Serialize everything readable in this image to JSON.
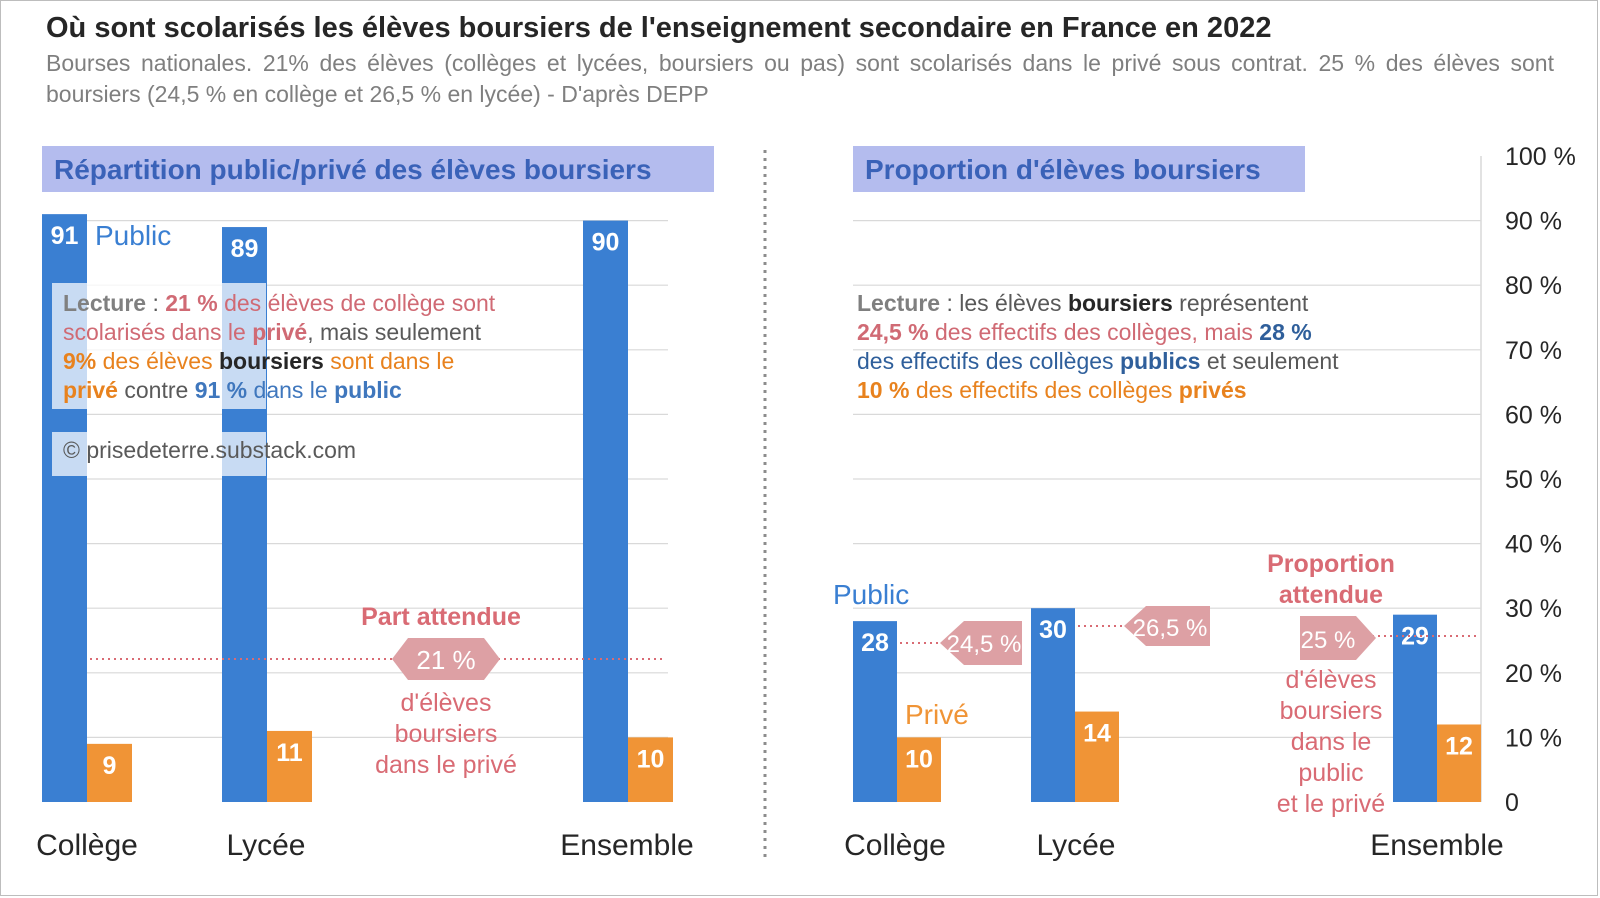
{
  "title": "Où sont scolarisés les élèves boursiers de l'enseignement secondaire en France en 2022",
  "subtitle": "Bourses nationales. 21% des élèves (collèges et lycées, boursiers ou pas) sont scolarisés dans le privé sous contrat. 25 % des élèves sont boursiers (24,5 % en collège et 26,5 % en lycée) - D'après DEPP",
  "colors": {
    "public": "#3a7fd2",
    "prive": "#f09436",
    "annotation": "#d96b74",
    "badge": "#dda0a4",
    "header_bg": "#b4bcee",
    "header_text": "#3a62b8"
  },
  "left_panel": {
    "header": "Répartition public/privé des élèves boursiers",
    "public_label": "Public",
    "expected_title": "Part attendue",
    "expected_badge": "21 %",
    "expected_lines": [
      "d'élèves",
      "boursiers",
      "dans le privé"
    ],
    "note": {
      "w1": "Lecture",
      "w2": " : ",
      "w3": "21 %",
      "w4": " des élèves de collège sont",
      "w5": "scolarisés dans le ",
      "w6": "privé",
      "w7": ", mais seulement",
      "w8": "9%",
      "w9": " des élèves ",
      "w10": "boursiers",
      "w11": " sont dans le",
      "w12": "privé",
      "w13": " contre ",
      "w14": "91 %",
      "w15": " dans le ",
      "w16": "public"
    },
    "credit": "© prisedeterre.substack.com"
  },
  "right_panel": {
    "header": "Proportion d'élèves boursiers",
    "public_label": "Public",
    "prive_label": "Privé",
    "college_badge": "24,5 %",
    "lycee_badge": "26,5 %",
    "expected_title_lines": [
      "Proportion",
      "attendue"
    ],
    "expected_badge": "25 %",
    "expected_lines": [
      "d'élèves",
      "boursiers",
      "dans le",
      "public",
      "et le privé"
    ],
    "note": {
      "w1": "Lecture",
      "w2": " : les élèves ",
      "w3": "boursiers",
      "w4": " représentent",
      "w5": "24,5 %",
      "w6": " des effectifs des collèges, mais ",
      "w7": "28 %",
      "w8": "des effectifs des collèges ",
      "w9": "publics",
      "w10": " et seulement",
      "w11": "10 %",
      "w12": " des effectifs des collèges ",
      "w13": "privés"
    }
  },
  "chart_data": [
    {
      "type": "bar",
      "title": "Répartition public/privé des élèves boursiers",
      "categories": [
        "Collège",
        "Lycée",
        "Ensemble"
      ],
      "series": [
        {
          "name": "Public",
          "values": [
            91,
            89,
            90
          ]
        },
        {
          "name": "Privé",
          "values": [
            9,
            11,
            10
          ]
        }
      ],
      "reference_line": {
        "value": 21,
        "label": "21 %"
      },
      "ylim": [
        0,
        100
      ]
    },
    {
      "type": "bar",
      "title": "Proportion d'élèves boursiers",
      "categories": [
        "Collège",
        "Lycée",
        "Ensemble"
      ],
      "series": [
        {
          "name": "Public",
          "values": [
            28,
            30,
            29
          ]
        },
        {
          "name": "Privé",
          "values": [
            10,
            14,
            12
          ]
        }
      ],
      "reference_lines": [
        {
          "category": "Collège",
          "value": 24.5,
          "label": "24,5 %"
        },
        {
          "category": "Lycée",
          "value": 26.5,
          "label": "26,5 %"
        },
        {
          "category": "Ensemble",
          "value": 25,
          "label": "25 %"
        }
      ],
      "ylim": [
        0,
        100
      ],
      "y_ticks": [
        "0",
        "10 %",
        "20 %",
        "30 %",
        "40 %",
        "50 %",
        "60 %",
        "70 %",
        "80 %",
        "90 %",
        "100 %"
      ]
    }
  ]
}
